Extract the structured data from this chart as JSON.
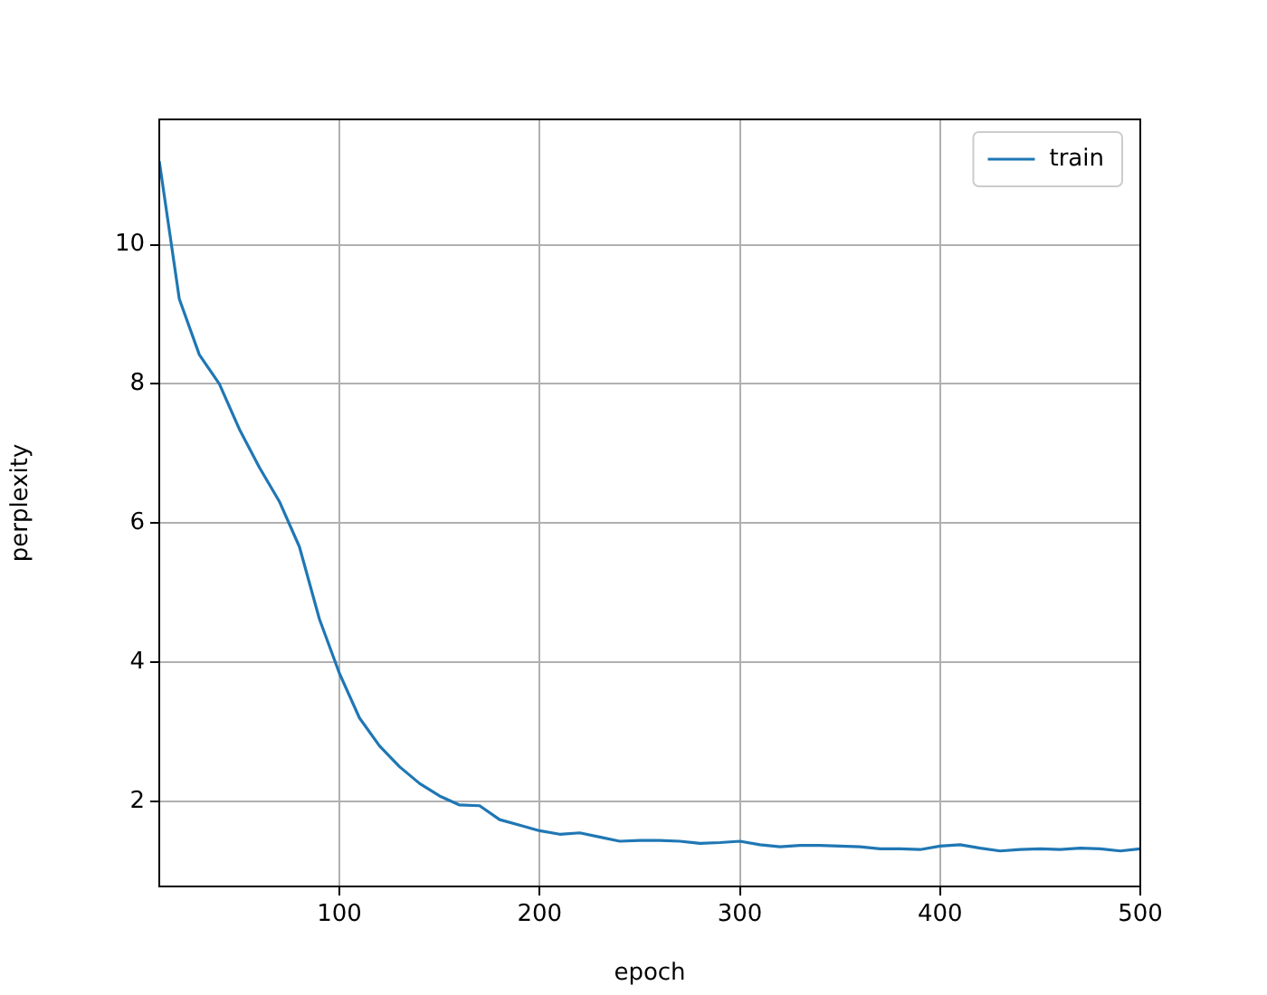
{
  "chart_data": {
    "type": "line",
    "xlabel": "epoch",
    "ylabel": "perplexity",
    "x": [
      10,
      20,
      30,
      40,
      50,
      60,
      70,
      80,
      90,
      100,
      110,
      120,
      130,
      140,
      150,
      160,
      170,
      180,
      190,
      200,
      210,
      220,
      230,
      240,
      250,
      260,
      270,
      280,
      290,
      300,
      310,
      320,
      330,
      340,
      350,
      360,
      370,
      380,
      390,
      400,
      410,
      420,
      430,
      440,
      450,
      460,
      470,
      480,
      490,
      500
    ],
    "series": [
      {
        "name": "train",
        "color": "#1f77b4",
        "values": [
          11.2,
          9.22,
          8.42,
          8.0,
          7.35,
          6.8,
          6.31,
          5.66,
          4.62,
          3.84,
          3.2,
          2.8,
          2.5,
          2.26,
          2.08,
          1.95,
          1.94,
          1.74,
          1.66,
          1.58,
          1.53,
          1.55,
          1.49,
          1.43,
          1.44,
          1.44,
          1.43,
          1.4,
          1.41,
          1.43,
          1.38,
          1.35,
          1.37,
          1.37,
          1.36,
          1.35,
          1.32,
          1.32,
          1.31,
          1.36,
          1.38,
          1.33,
          1.29,
          1.31,
          1.32,
          1.31,
          1.33,
          1.32,
          1.29,
          1.32
        ]
      }
    ],
    "xlim": [
      10,
      500
    ],
    "ylim": [
      0.78,
      11.8
    ],
    "xticks": [
      100,
      200,
      300,
      400,
      500
    ],
    "yticks": [
      2,
      4,
      6,
      8,
      10
    ],
    "grid": true,
    "legend": "top right",
    "marker": "none",
    "line_style": "solid"
  }
}
